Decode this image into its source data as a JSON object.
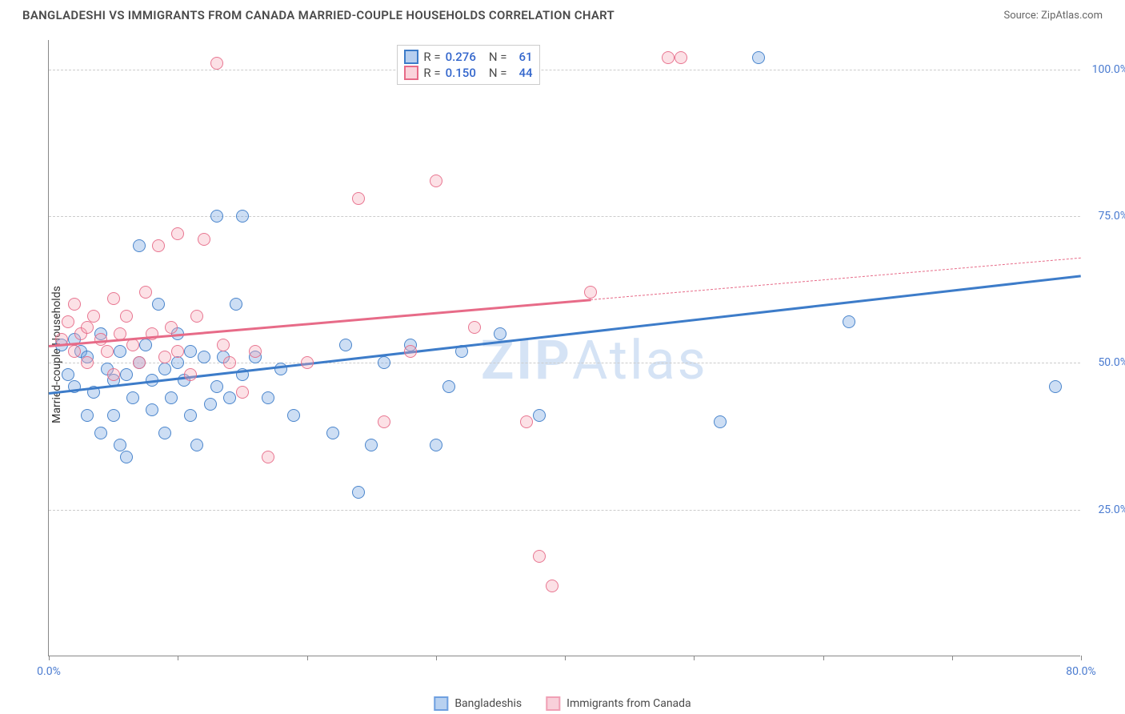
{
  "title": "BANGLADESHI VS IMMIGRANTS FROM CANADA MARRIED-COUPLE HOUSEHOLDS CORRELATION CHART",
  "source_label": "Source: ZipAtlas.com",
  "ylabel": "Married-couple Households",
  "watermark_bold": "ZIP",
  "watermark_rest": "Atlas",
  "chart": {
    "type": "scatter",
    "xlim": [
      0,
      80
    ],
    "ylim": [
      0,
      105
    ],
    "background_color": "#ffffff",
    "grid_color": "#cccccc",
    "axis_color": "#888888",
    "tick_label_color": "#4a7bd0",
    "x_ticks_major": [
      0,
      10,
      20,
      30,
      40,
      50,
      60,
      70,
      80
    ],
    "x_tick_labels": [
      {
        "pos": 0,
        "label": "0.0%"
      },
      {
        "pos": 80,
        "label": "80.0%"
      }
    ],
    "y_gridlines": [
      25,
      50,
      75,
      100
    ],
    "y_tick_labels": [
      {
        "pos": 25,
        "label": "25.0%"
      },
      {
        "pos": 50,
        "label": "50.0%"
      },
      {
        "pos": 75,
        "label": "75.0%"
      },
      {
        "pos": 100,
        "label": "100.0%"
      }
    ],
    "marker_radius": 8,
    "marker_fill_opacity": 0.35,
    "marker_stroke_opacity": 0.9
  },
  "series": [
    {
      "name": "Bangladeshis",
      "color": "#6fa0e0",
      "stroke": "#3d7cc9",
      "r_value": "0.276",
      "n_value": "61",
      "trend": {
        "x1": 0,
        "y1": 45,
        "x2": 80,
        "y2": 65,
        "solid_until_x": 80
      },
      "points": [
        [
          1,
          53
        ],
        [
          1.5,
          48
        ],
        [
          2,
          54
        ],
        [
          2,
          46
        ],
        [
          2.5,
          52
        ],
        [
          3,
          41
        ],
        [
          3,
          51
        ],
        [
          3.5,
          45
        ],
        [
          4,
          55
        ],
        [
          4,
          38
        ],
        [
          4.5,
          49
        ],
        [
          5,
          41
        ],
        [
          5,
          47
        ],
        [
          5.5,
          52
        ],
        [
          5.5,
          36
        ],
        [
          6,
          48
        ],
        [
          6,
          34
        ],
        [
          6.5,
          44
        ],
        [
          7,
          70
        ],
        [
          7,
          50
        ],
        [
          7.5,
          53
        ],
        [
          8,
          42
        ],
        [
          8,
          47
        ],
        [
          8.5,
          60
        ],
        [
          9,
          38
        ],
        [
          9,
          49
        ],
        [
          9.5,
          44
        ],
        [
          10,
          50
        ],
        [
          10,
          55
        ],
        [
          10.5,
          47
        ],
        [
          11,
          41
        ],
        [
          11,
          52
        ],
        [
          11.5,
          36
        ],
        [
          12,
          51
        ],
        [
          12.5,
          43
        ],
        [
          13,
          75
        ],
        [
          13,
          46
        ],
        [
          13.5,
          51
        ],
        [
          14,
          44
        ],
        [
          14.5,
          60
        ],
        [
          15,
          48
        ],
        [
          15,
          75
        ],
        [
          16,
          51
        ],
        [
          17,
          44
        ],
        [
          18,
          49
        ],
        [
          19,
          41
        ],
        [
          22,
          38
        ],
        [
          23,
          53
        ],
        [
          24,
          28
        ],
        [
          25,
          36
        ],
        [
          26,
          50
        ],
        [
          28,
          53
        ],
        [
          30,
          36
        ],
        [
          31,
          46
        ],
        [
          32,
          52
        ],
        [
          35,
          55
        ],
        [
          38,
          41
        ],
        [
          52,
          40
        ],
        [
          55,
          102
        ],
        [
          62,
          57
        ],
        [
          78,
          46
        ]
      ]
    },
    {
      "name": "Immigrants from Canada",
      "color": "#f5a8b8",
      "stroke": "#e76b88",
      "r_value": "0.150",
      "n_value": "44",
      "trend": {
        "x1": 0,
        "y1": 53,
        "x2": 80,
        "y2": 68,
        "solid_until_x": 42
      },
      "points": [
        [
          1,
          54
        ],
        [
          1.5,
          57
        ],
        [
          2,
          52
        ],
        [
          2,
          60
        ],
        [
          2.5,
          55
        ],
        [
          3,
          56
        ],
        [
          3,
          50
        ],
        [
          3.5,
          58
        ],
        [
          4,
          54
        ],
        [
          4.5,
          52
        ],
        [
          5,
          61
        ],
        [
          5,
          48
        ],
        [
          5.5,
          55
        ],
        [
          6,
          58
        ],
        [
          6.5,
          53
        ],
        [
          7,
          50
        ],
        [
          7.5,
          62
        ],
        [
          8,
          55
        ],
        [
          8.5,
          70
        ],
        [
          9,
          51
        ],
        [
          9.5,
          56
        ],
        [
          10,
          72
        ],
        [
          10,
          52
        ],
        [
          11,
          48
        ],
        [
          11.5,
          58
        ],
        [
          12,
          71
        ],
        [
          13,
          101
        ],
        [
          13.5,
          53
        ],
        [
          14,
          50
        ],
        [
          15,
          45
        ],
        [
          16,
          52
        ],
        [
          17,
          34
        ],
        [
          20,
          50
        ],
        [
          24,
          78
        ],
        [
          26,
          40
        ],
        [
          28,
          52
        ],
        [
          30,
          81
        ],
        [
          33,
          56
        ],
        [
          37,
          40
        ],
        [
          38,
          17
        ],
        [
          39,
          12
        ],
        [
          42,
          62
        ],
        [
          48,
          102
        ],
        [
          49,
          102
        ]
      ]
    }
  ],
  "rn_legend_labels": {
    "r": "R =",
    "n": "N ="
  },
  "bottom_legend": [
    {
      "label": "Bangladeshis",
      "fill": "#b8d1f0",
      "stroke": "#6fa0e0"
    },
    {
      "label": "Immigrants from Canada",
      "fill": "#f8d0da",
      "stroke": "#f0a0b5"
    }
  ]
}
